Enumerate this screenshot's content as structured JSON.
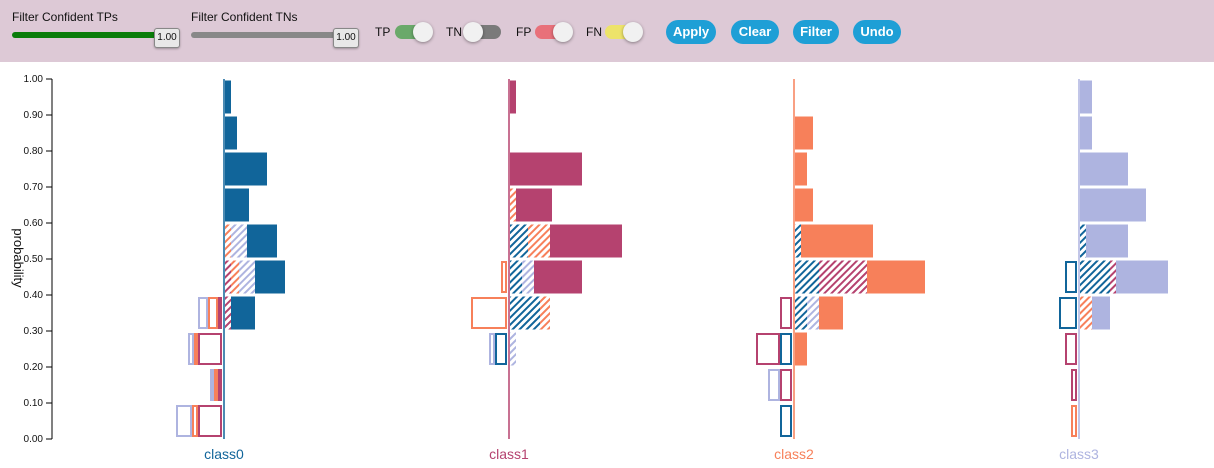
{
  "toolbar": {
    "tp_slider": {
      "label": "Filter Confident TPs",
      "value": "1.00",
      "color": "#0a7d0a"
    },
    "tn_slider": {
      "label": "Filter Confident TNs",
      "value": "1.00",
      "color": "#888888"
    },
    "toggles": [
      {
        "label": "TP",
        "on": true,
        "color": "#6aa96a"
      },
      {
        "label": "TN",
        "on": false,
        "color": "#7a7a7a"
      },
      {
        "label": "FP",
        "on": true,
        "color": "#e8707a"
      },
      {
        "label": "FN",
        "on": true,
        "color": "#ede36a"
      }
    ],
    "buttons": [
      "Apply",
      "Clear",
      "Filter",
      "Undo"
    ]
  },
  "chart_data": {
    "type": "bar",
    "ylabel": "probability",
    "ylim": [
      0,
      1
    ],
    "yticks": [
      "0.00",
      "0.10",
      "0.20",
      "0.30",
      "0.40",
      "0.50",
      "0.60",
      "0.70",
      "0.80",
      "0.90",
      "1.00"
    ],
    "bins": [
      0.0,
      0.1,
      0.2,
      0.3,
      0.4,
      0.5,
      0.6,
      0.7,
      0.8,
      0.9
    ],
    "classes": [
      {
        "name": "class0",
        "color": "#11659a",
        "right": [
          [],
          [],
          [],
          [
            {
              "c": 1,
              "v": 3
            },
            {
              "c": 0,
              "v": 12
            }
          ],
          [
            {
              "c": 1,
              "v": 3
            },
            {
              "c": 2,
              "v": 4
            },
            {
              "c": 3,
              "v": 8
            },
            {
              "c": 0,
              "v": 15
            }
          ],
          [
            {
              "c": 2,
              "v": 3
            },
            {
              "c": 3,
              "v": 8
            },
            {
              "c": 0,
              "v": 15
            }
          ],
          [
            {
              "c": 0,
              "v": 12
            }
          ],
          [
            {
              "c": 0,
              "v": 21
            }
          ],
          [
            {
              "c": 0,
              "v": 6
            }
          ],
          [
            {
              "c": 0,
              "v": 3
            }
          ]
        ],
        "left": [
          [
            {
              "c": 1,
              "v": 12
            },
            {
              "c": 2,
              "v": 3
            },
            {
              "c": 3,
              "v": 8
            }
          ],
          [
            {
              "c": 1,
              "v": 2
            },
            {
              "c": 2,
              "v": 2
            },
            {
              "c": 3,
              "v": 2
            }
          ],
          [
            {
              "c": 1,
              "v": 12
            },
            {
              "c": 2,
              "v": 2
            },
            {
              "c": 3,
              "v": 3
            }
          ],
          [
            {
              "c": 1,
              "v": 2
            },
            {
              "c": 2,
              "v": 5
            },
            {
              "c": 3,
              "v": 5
            }
          ],
          [],
          [],
          [],
          [],
          [],
          []
        ]
      },
      {
        "name": "class1",
        "color": "#b5426f",
        "right": [
          [],
          [],
          [
            {
              "c": 3,
              "v": 3
            }
          ],
          [
            {
              "c": 0,
              "v": 15
            },
            {
              "c": 2,
              "v": 5
            }
          ],
          [
            {
              "c": 0,
              "v": 6
            },
            {
              "c": 3,
              "v": 6
            },
            {
              "c": 1,
              "v": 24
            }
          ],
          [
            {
              "c": 0,
              "v": 9
            },
            {
              "c": 2,
              "v": 11
            },
            {
              "c": 1,
              "v": 36
            }
          ],
          [
            {
              "c": 2,
              "v": 3
            },
            {
              "c": 1,
              "v": 18
            }
          ],
          [
            {
              "c": 1,
              "v": 36
            }
          ],
          [],
          [
            {
              "c": 1,
              "v": 3
            }
          ]
        ],
        "left": [
          [],
          [],
          [
            {
              "c": 0,
              "v": 6
            },
            {
              "c": 3,
              "v": 3
            }
          ],
          [
            {
              "c": 2,
              "v": 18
            }
          ],
          [
            {
              "c": 2,
              "v": 3
            }
          ],
          [],
          [],
          [],
          [],
          []
        ]
      },
      {
        "name": "class2",
        "color": "#f7805a",
        "right": [
          [],
          [],
          [
            {
              "c": 2,
              "v": 6
            }
          ],
          [
            {
              "c": 0,
              "v": 6
            },
            {
              "c": 3,
              "v": 6
            },
            {
              "c": 2,
              "v": 12
            }
          ],
          [
            {
              "c": 0,
              "v": 12
            },
            {
              "c": 1,
              "v": 24
            },
            {
              "c": 2,
              "v": 29
            }
          ],
          [
            {
              "c": 0,
              "v": 3
            },
            {
              "c": 2,
              "v": 36
            }
          ],
          [
            {
              "c": 2,
              "v": 9
            }
          ],
          [
            {
              "c": 2,
              "v": 6
            }
          ],
          [
            {
              "c": 2,
              "v": 9
            }
          ],
          []
        ],
        "left": [
          [
            {
              "c": 0,
              "v": 6
            }
          ],
          [
            {
              "c": 1,
              "v": 6
            },
            {
              "c": 3,
              "v": 6
            }
          ],
          [
            {
              "c": 0,
              "v": 6
            },
            {
              "c": 1,
              "v": 12
            }
          ],
          [
            {
              "c": 1,
              "v": 6
            }
          ],
          [],
          [],
          [],
          [],
          [],
          []
        ]
      },
      {
        "name": "class3",
        "color": "#aeb4e0",
        "right": [
          [],
          [],
          [],
          [
            {
              "c": 2,
              "v": 6
            },
            {
              "c": 3,
              "v": 9
            }
          ],
          [
            {
              "c": 0,
              "v": 15
            },
            {
              "c": 1,
              "v": 3
            },
            {
              "c": 3,
              "v": 26
            }
          ],
          [
            {
              "c": 0,
              "v": 3
            },
            {
              "c": 3,
              "v": 21
            }
          ],
          [
            {
              "c": 3,
              "v": 33
            }
          ],
          [
            {
              "c": 3,
              "v": 24
            }
          ],
          [
            {
              "c": 3,
              "v": 6
            }
          ],
          [
            {
              "c": 3,
              "v": 6
            }
          ]
        ],
        "left": [
          [
            {
              "c": 2,
              "v": 3
            }
          ],
          [
            {
              "c": 1,
              "v": 3
            }
          ],
          [
            {
              "c": 1,
              "v": 6
            }
          ],
          [
            {
              "c": 0,
              "v": 9
            }
          ],
          [
            {
              "c": 0,
              "v": 6
            }
          ],
          [],
          [],
          [],
          [],
          []
        ]
      }
    ]
  }
}
